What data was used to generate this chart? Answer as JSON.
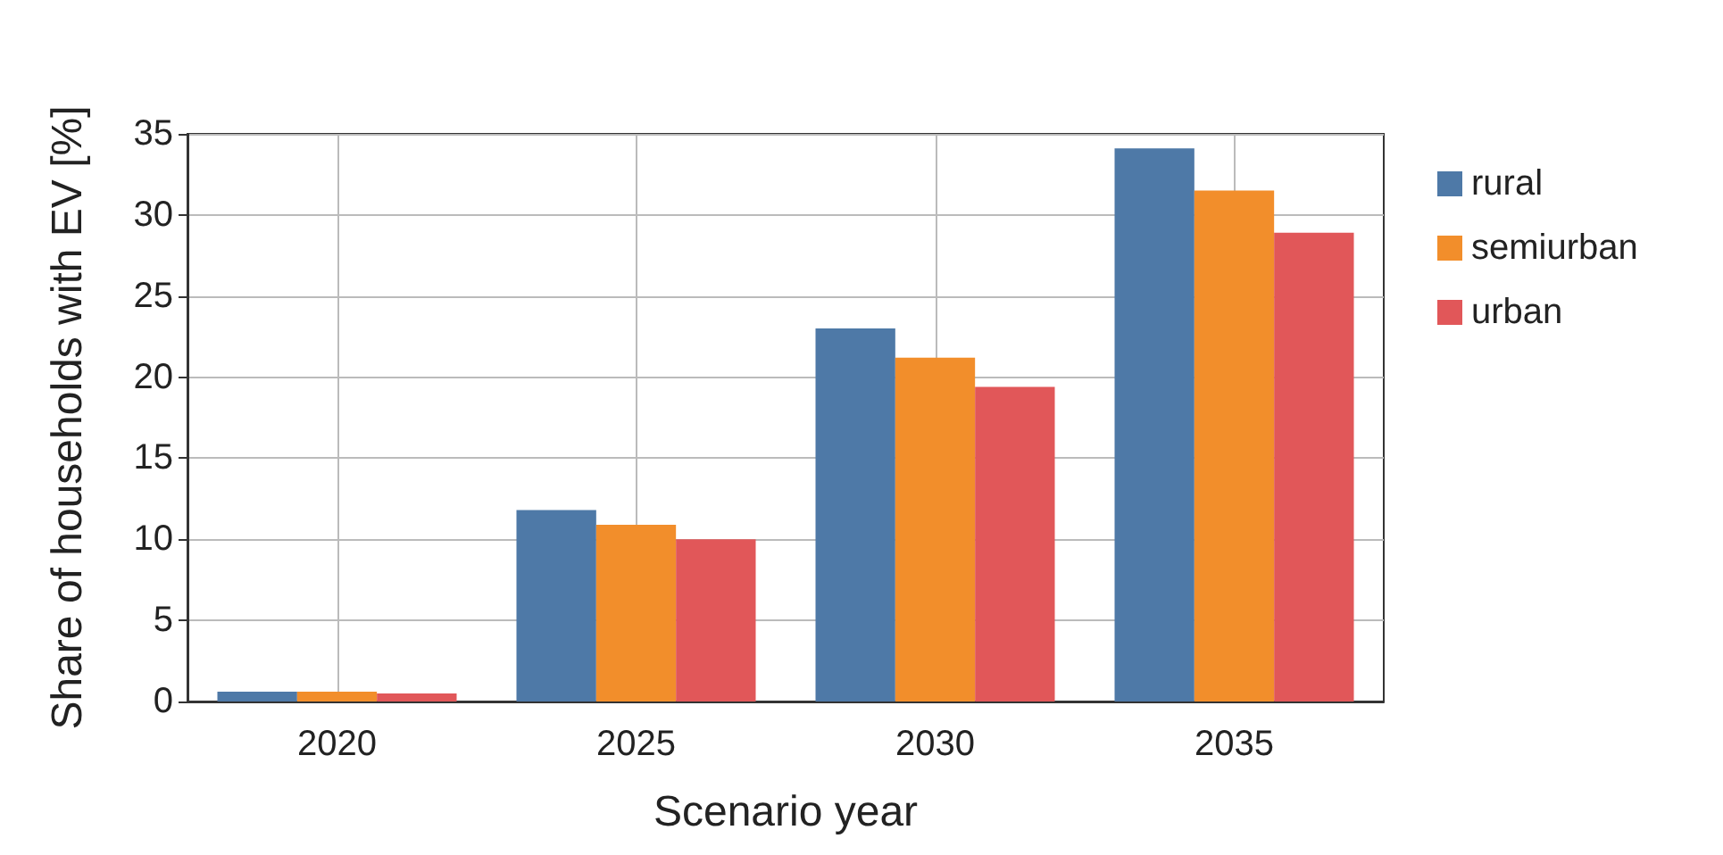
{
  "chart_data": {
    "type": "bar",
    "xlabel": "Scenario year",
    "ylabel": "Share of households with EV [%]",
    "categories": [
      "2020",
      "2025",
      "2030",
      "2035"
    ],
    "series": [
      {
        "name": "rural",
        "color": "#4e79a7",
        "values": [
          0.6,
          11.8,
          23.0,
          34.1
        ]
      },
      {
        "name": "semiurban",
        "color": "#f28e2b",
        "values": [
          0.6,
          10.9,
          21.2,
          31.5
        ]
      },
      {
        "name": "urban",
        "color": "#e15759",
        "values": [
          0.5,
          10.0,
          19.4,
          28.9
        ]
      }
    ],
    "ylim": [
      0,
      35
    ],
    "yticks": [
      0,
      5,
      10,
      15,
      20,
      25,
      30,
      35
    ],
    "grid": true,
    "legend": "right"
  }
}
